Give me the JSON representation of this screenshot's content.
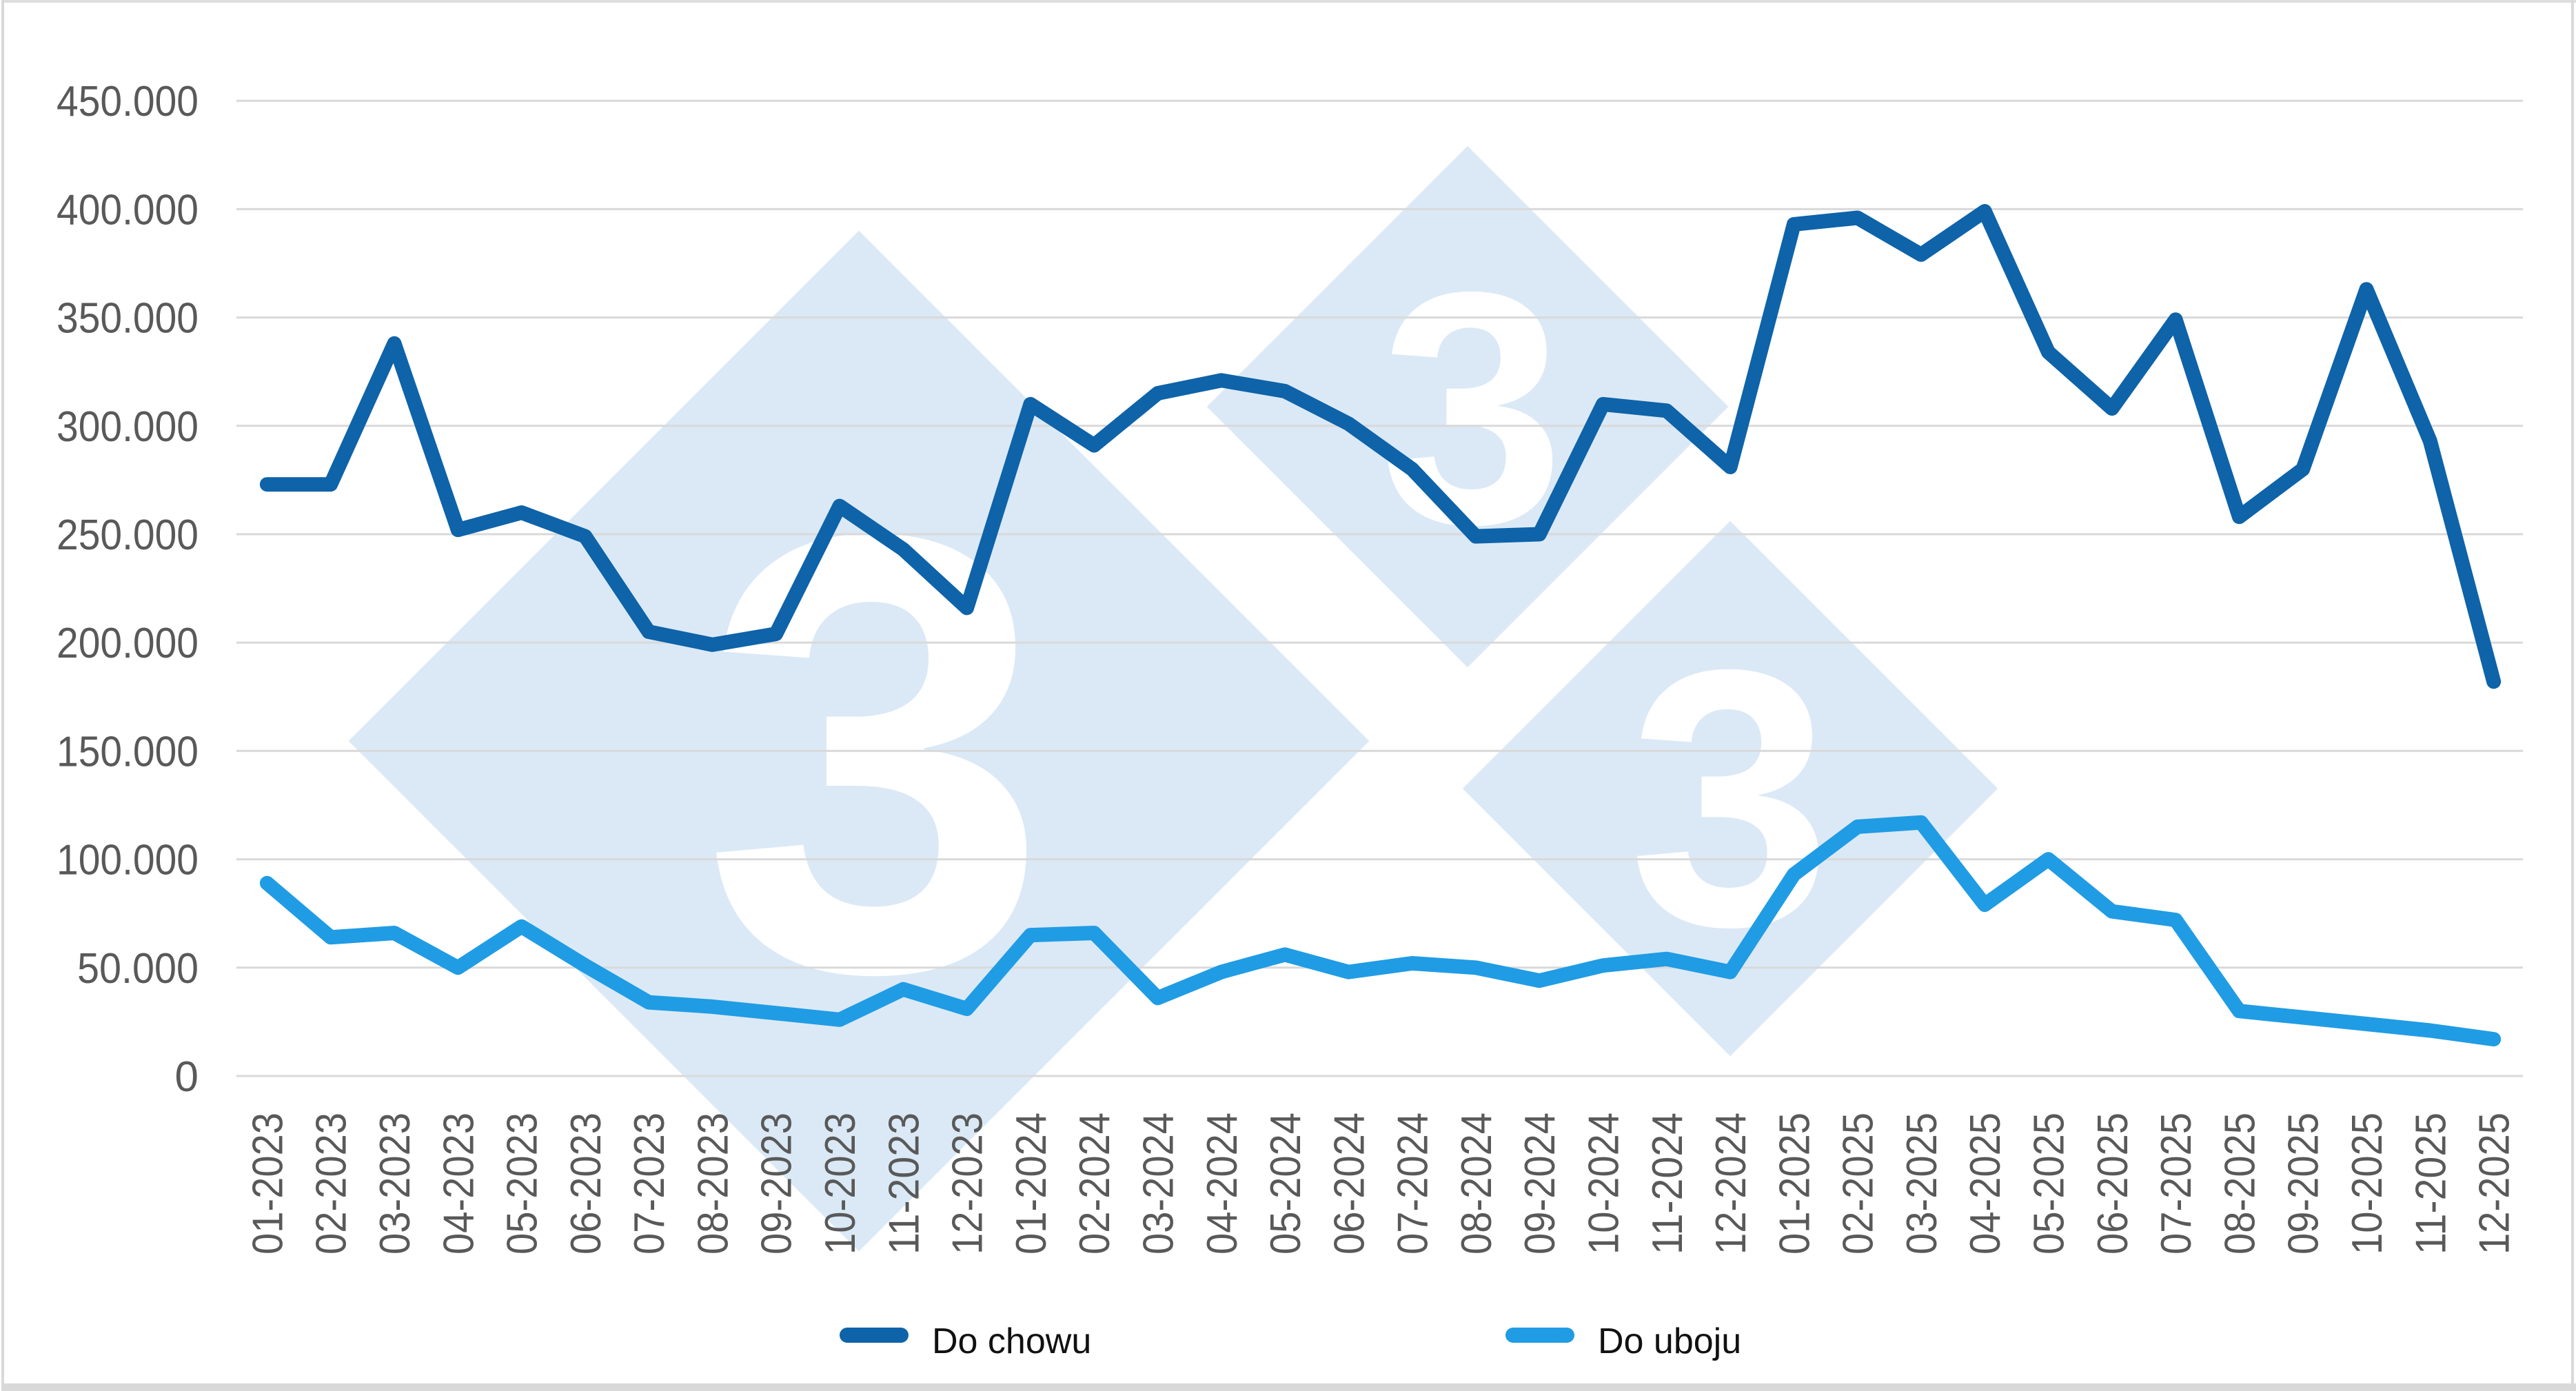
{
  "watermark": {
    "digit": "3",
    "color": "#dbe9f6"
  },
  "legend": [
    {
      "label": "Do chowu",
      "color": "#0e63a9"
    },
    {
      "label": "Do uboju",
      "color": "#209ce4"
    }
  ],
  "chart_data": {
    "type": "line",
    "categories": [
      "01-2023",
      "02-2023",
      "03-2023",
      "04-2023",
      "05-2023",
      "06-2023",
      "07-2023",
      "08-2023",
      "09-2023",
      "10-2023",
      "11-2023",
      "12-2023",
      "01-2024",
      "02-2024",
      "03-2024",
      "04-2024",
      "05-2024",
      "06-2024",
      "07-2024",
      "08-2024",
      "09-2024",
      "10-2024",
      "11-2024",
      "12-2024",
      "01-2025",
      "02-2025",
      "03-2025",
      "04-2025",
      "05-2025",
      "06-2025",
      "07-2025",
      "08-2025",
      "09-2025",
      "10-2025",
      "11-2025",
      "12-2025"
    ],
    "series": [
      {
        "name": "Do chowu",
        "color": "#0e63a9",
        "values": [
          273000,
          273000,
          338000,
          252000,
          260000,
          249000,
          205000,
          199000,
          204000,
          263000,
          243000,
          216000,
          310000,
          291000,
          315000,
          321000,
          316000,
          301000,
          280000,
          249000,
          250000,
          310000,
          307000,
          281000,
          393000,
          396000,
          379000,
          399000,
          334000,
          308000,
          349000,
          258000,
          280000,
          363000,
          293000,
          182000
        ]
      },
      {
        "name": "Do uboju",
        "color": "#209ce4",
        "values": [
          89000,
          64000,
          66000,
          50000,
          69000,
          51000,
          34000,
          32000,
          29000,
          26000,
          40000,
          31000,
          65000,
          66000,
          36000,
          48000,
          56000,
          48000,
          52000,
          50000,
          44000,
          51000,
          54000,
          48000,
          93000,
          115000,
          117000,
          79000,
          100000,
          76000,
          72000,
          30000,
          27000,
          24000,
          21000,
          17000
        ]
      }
    ],
    "title": "",
    "xlabel": "",
    "ylabel": "",
    "ylim": [
      0,
      450000
    ],
    "y_tick_step": 50000,
    "y_tick_labels": [
      "0",
      "50.000",
      "100.000",
      "150.000",
      "200.000",
      "250.000",
      "300.000",
      "350.000",
      "400.000",
      "450.000"
    ],
    "grid": "horizontal-only",
    "legend_position": "bottom",
    "x_tick_rotation": -90
  }
}
